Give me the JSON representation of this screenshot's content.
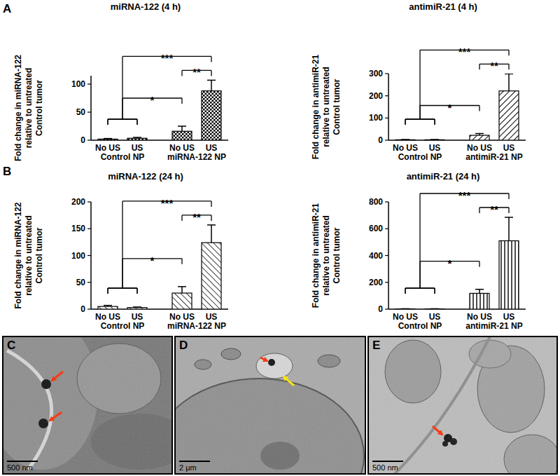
{
  "chart_data": [
    {
      "type": "bar",
      "title": "miRNA-122 (4 h)",
      "ylabel": [
        "Fold change in miRNA-122",
        "relative to untreated",
        "Control tumor"
      ],
      "categories": [
        "No US",
        "US",
        "No US",
        "US"
      ],
      "groups": [
        {
          "label": "Control NP",
          "span": [
            0,
            1
          ]
        },
        {
          "label": "miRNA-122 NP",
          "span": [
            2,
            3
          ]
        }
      ],
      "values": [
        2,
        3.5,
        16,
        88
      ],
      "errors": [
        1,
        1.5,
        9,
        19
      ],
      "color": "#000000",
      "ylim": [
        0,
        115
      ],
      "yticks": [
        0,
        50,
        100
      ],
      "annotations": [
        {
          "text": "***",
          "from": [
            0,
            1
          ],
          "to": 3
        },
        {
          "text": "**",
          "from": [
            2
          ],
          "to": 3
        },
        {
          "text": "*",
          "from": [
            0,
            1
          ],
          "to": 2
        }
      ]
    },
    {
      "type": "bar",
      "title": "antimiR-21 (4 h)",
      "ylabel": [
        "Fold change in antimiR-21",
        "relative to untreated",
        "Control tumor"
      ],
      "categories": [
        "No US",
        "US",
        "No US",
        "US"
      ],
      "groups": [
        {
          "label": "Control NP",
          "span": [
            0,
            1
          ]
        },
        {
          "label": "antimiR-21 NP",
          "span": [
            2,
            3
          ]
        }
      ],
      "values": [
        2,
        2,
        22,
        222
      ],
      "errors": [
        1,
        1,
        8,
        77
      ],
      "color": "#000000",
      "ylim": [
        0,
        300
      ],
      "yticks": [
        0,
        100,
        200,
        300
      ],
      "annotations": [
        {
          "text": "***",
          "from": [
            0,
            1
          ],
          "to": 3
        },
        {
          "text": "**",
          "from": [
            2
          ],
          "to": 3
        },
        {
          "text": "*",
          "from": [
            0,
            1
          ],
          "to": 2
        }
      ]
    },
    {
      "type": "bar",
      "title": "miRNA-122 (24 h)",
      "ylabel": [
        "Fold change in miRNA-122",
        "relative to untreated",
        "Control tumor"
      ],
      "categories": [
        "No US",
        "US",
        "No US",
        "US"
      ],
      "groups": [
        {
          "label": "Control NP",
          "span": [
            0,
            1
          ]
        },
        {
          "label": "miRNA-122 NP",
          "span": [
            2,
            3
          ]
        }
      ],
      "values": [
        5,
        3,
        30,
        124
      ],
      "errors": [
        2,
        1,
        12,
        33
      ],
      "color": "#000000",
      "ylim": [
        0,
        200
      ],
      "yticks": [
        0,
        50,
        100,
        150,
        200
      ],
      "annotations": [
        {
          "text": "***",
          "from": [
            0,
            1
          ],
          "to": 3
        },
        {
          "text": "**",
          "from": [
            2
          ],
          "to": 3
        },
        {
          "text": "*",
          "from": [
            0,
            1
          ],
          "to": 2
        }
      ]
    },
    {
      "type": "bar",
      "title": "antimiR-21 (24 h)",
      "ylabel": [
        "Fold change in antimiR-21",
        "relative to untreated",
        "Control tumor"
      ],
      "categories": [
        "No US",
        "US",
        "No US",
        "US"
      ],
      "groups": [
        {
          "label": "Control NP",
          "span": [
            0,
            1
          ]
        },
        {
          "label": "antimiR-21 NP",
          "span": [
            2,
            3
          ]
        }
      ],
      "values": [
        2,
        2,
        118,
        510
      ],
      "errors": [
        1,
        1,
        30,
        175
      ],
      "color": "#000000",
      "ylim": [
        0,
        800
      ],
      "yticks": [
        0,
        200,
        400,
        600,
        800
      ],
      "annotations": [
        {
          "text": "***",
          "from": [
            0,
            1
          ],
          "to": 3
        },
        {
          "text": "**",
          "from": [
            2
          ],
          "to": 3
        },
        {
          "text": "*",
          "from": [
            0,
            1
          ],
          "to": 2
        }
      ]
    }
  ],
  "panel_labels": [
    "A",
    "B"
  ],
  "micrographs": [
    {
      "label": "C",
      "scale_bar": "500 nm"
    },
    {
      "label": "D",
      "scale_bar": "2 μm"
    },
    {
      "label": "E",
      "scale_bar": "500 nm"
    }
  ]
}
